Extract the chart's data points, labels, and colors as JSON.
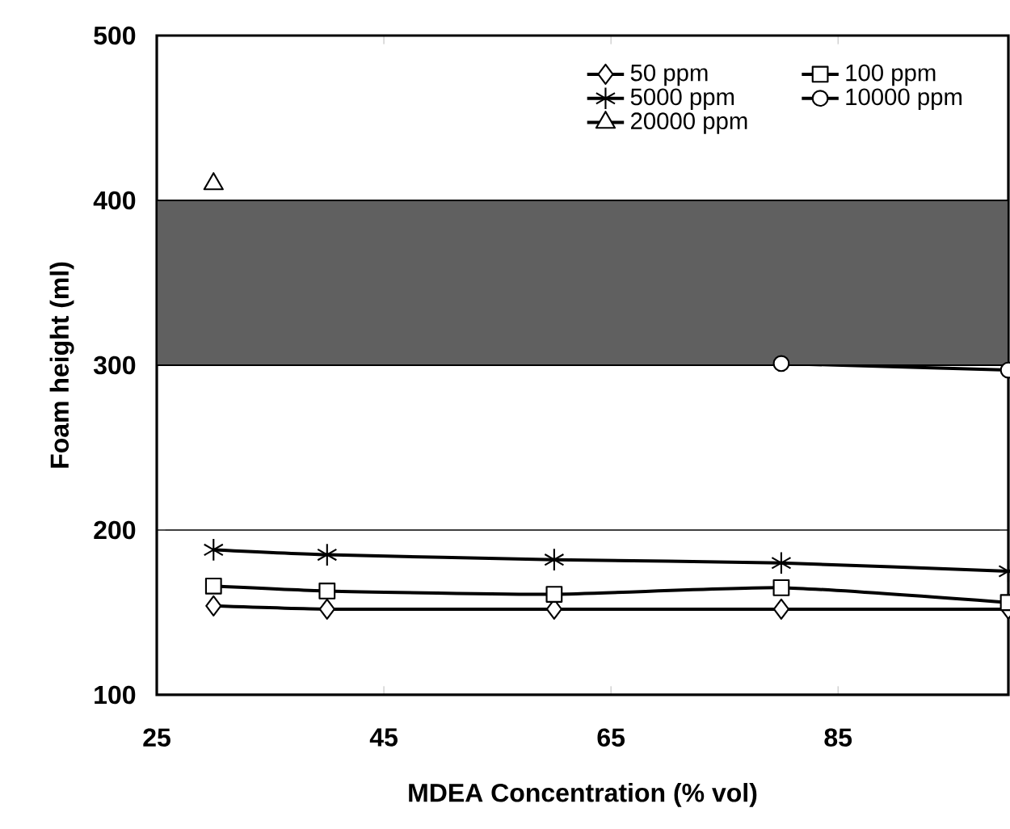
{
  "chart_data": {
    "type": "line",
    "xlabel": "MDEA Concentration (% vol)",
    "ylabel": "Foam height (ml)",
    "xlim": [
      25,
      100
    ],
    "xticks": [
      25,
      45,
      65,
      85
    ],
    "ylim": [
      100,
      500
    ],
    "yticks": [
      100,
      200,
      300,
      400,
      500
    ],
    "grid": "y",
    "legend": "top right",
    "bands": [
      {
        "axis": "y",
        "from": 300,
        "to": 400,
        "color": "#606060"
      }
    ],
    "series": [
      {
        "name": "50 ppm",
        "color": "#000000",
        "marker": "diamond",
        "x": [
          30,
          40,
          60,
          80,
          100
        ],
        "values": [
          154,
          152,
          152,
          152,
          152
        ]
      },
      {
        "name": "100 ppm",
        "color": "#000000",
        "marker": "square",
        "x": [
          30,
          40,
          60,
          80,
          100
        ],
        "values": [
          166,
          163,
          161,
          165,
          156
        ]
      },
      {
        "name": "5000 ppm",
        "color": "#000000",
        "marker": "cross",
        "x": [
          30,
          40,
          60,
          80,
          100
        ],
        "values": [
          188,
          185,
          182,
          180,
          175
        ]
      },
      {
        "name": "10000 ppm",
        "color": "#000000",
        "marker": "circle",
        "x": [
          80,
          100
        ],
        "values": [
          301,
          297
        ]
      },
      {
        "name": "20000 ppm",
        "color": "#000000",
        "marker": "triangle",
        "x": [
          30
        ],
        "values": [
          410
        ]
      }
    ]
  }
}
